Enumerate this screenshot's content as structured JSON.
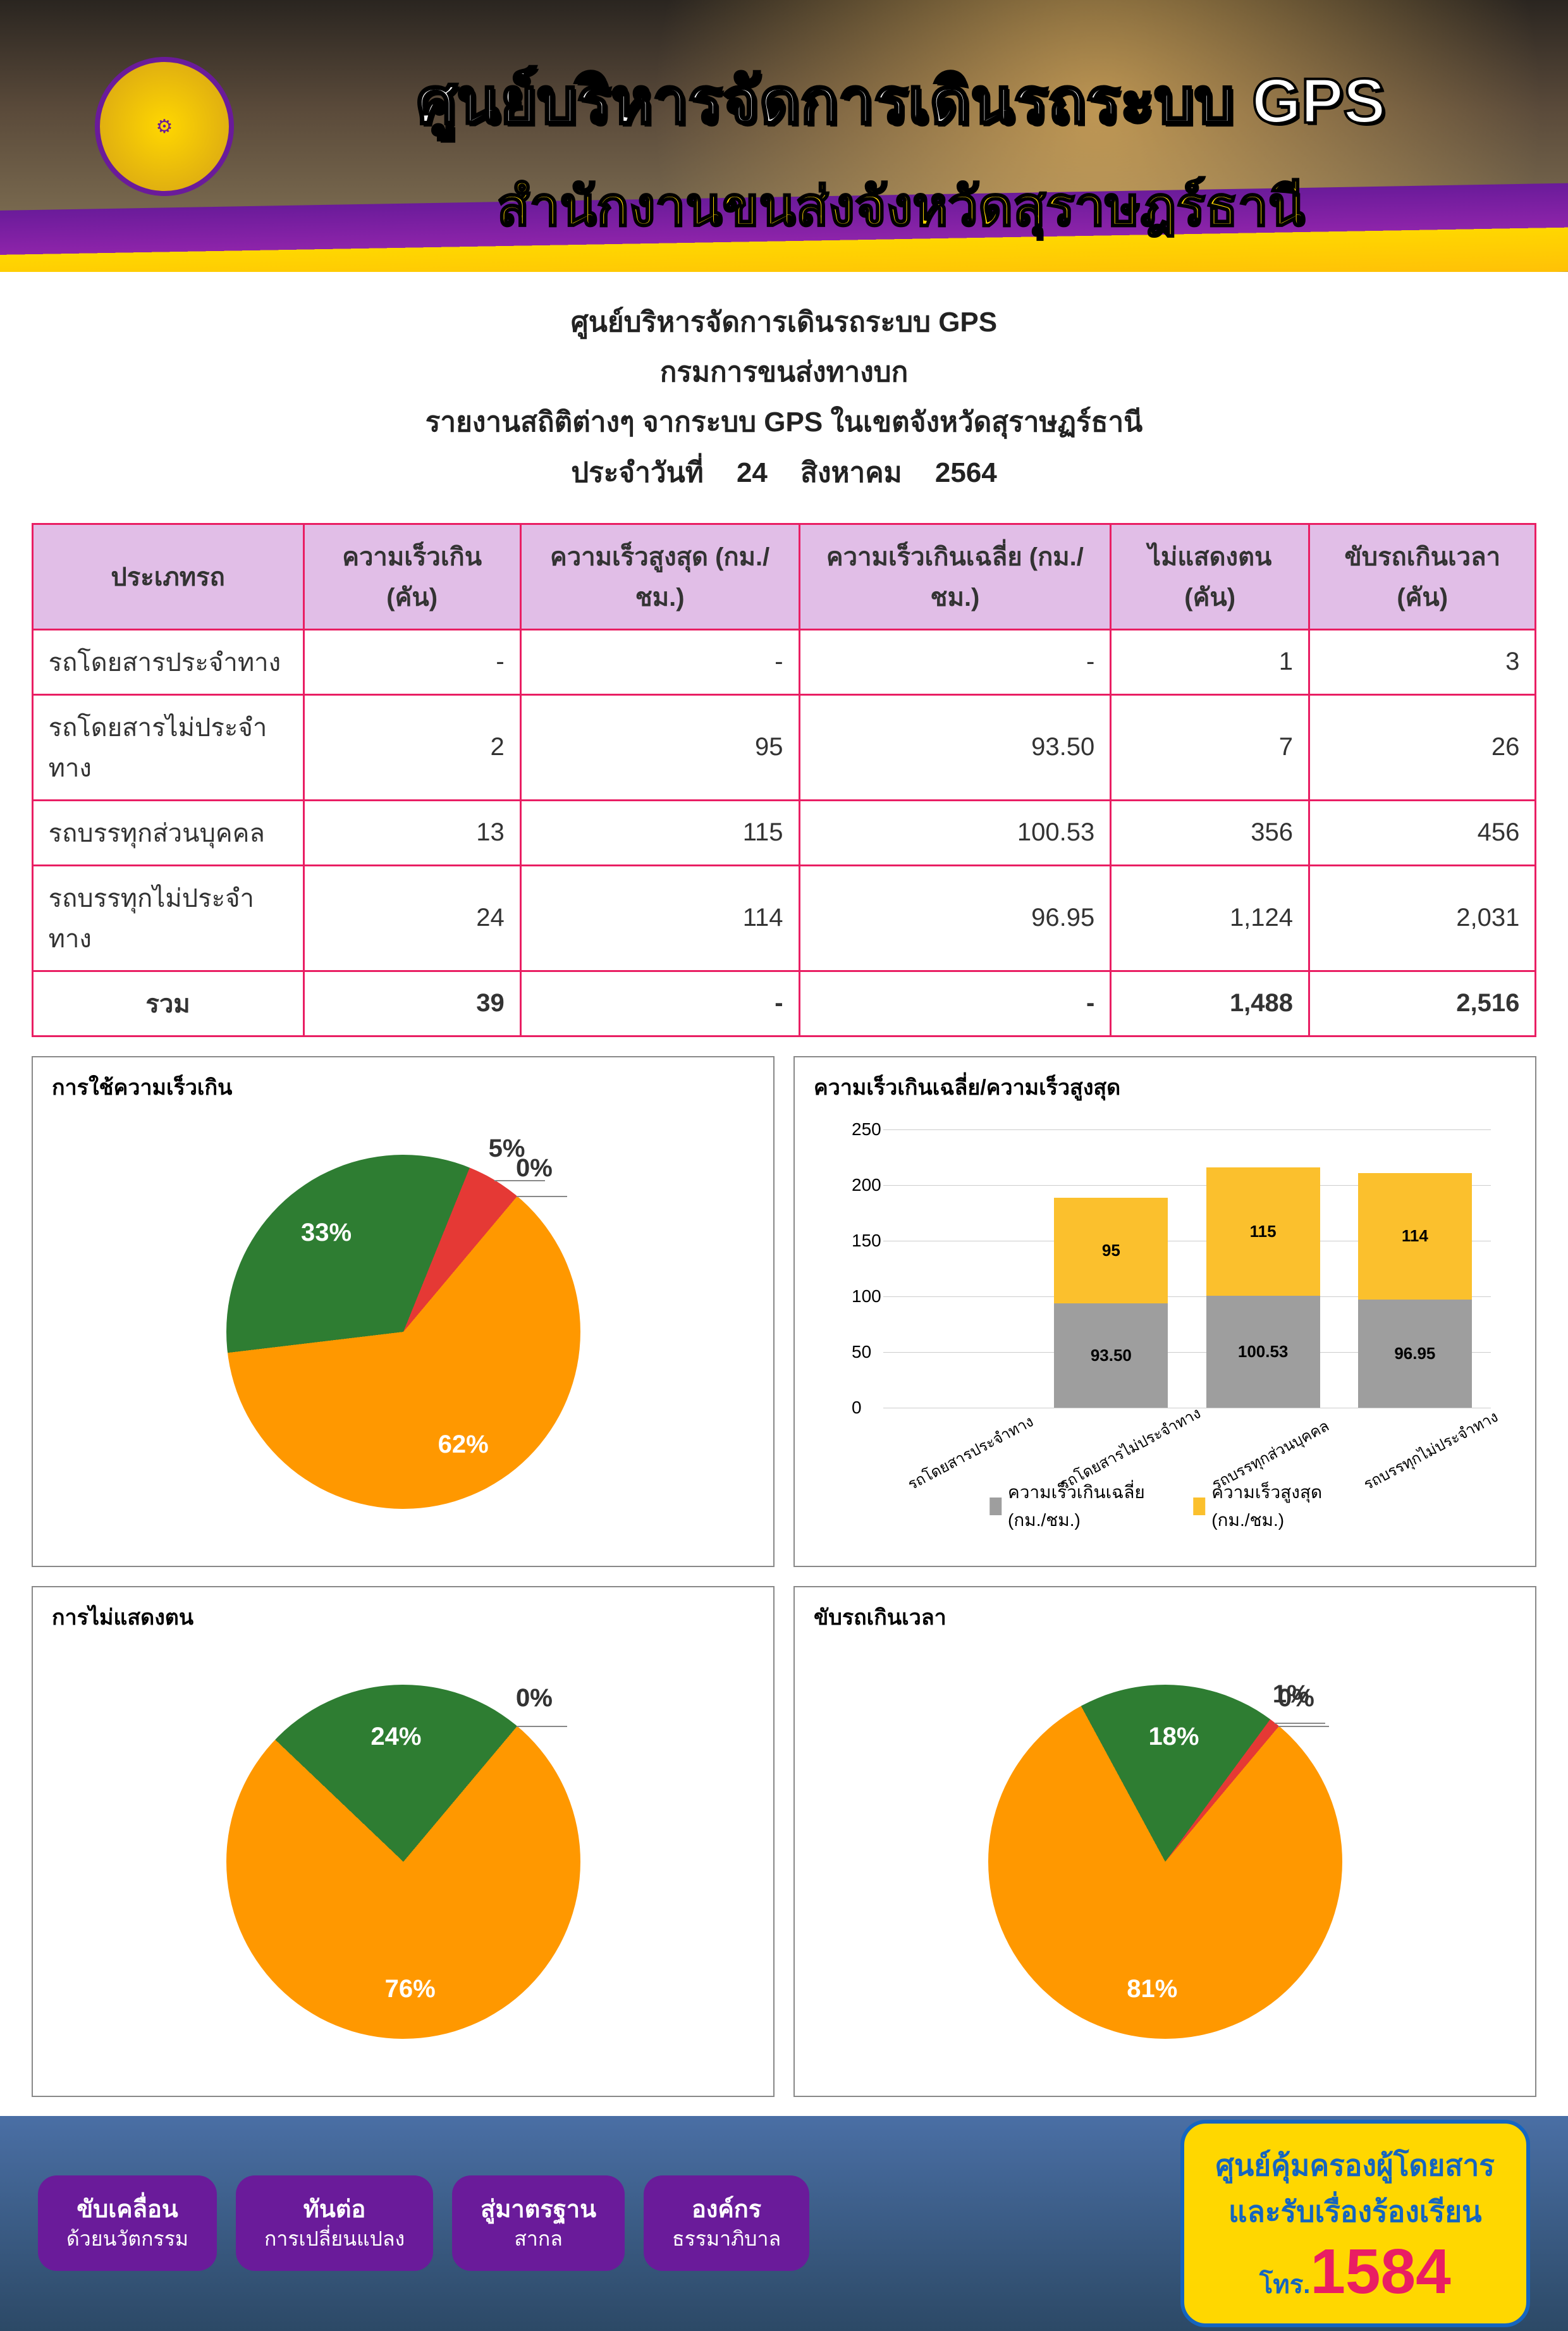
{
  "header": {
    "title_line1": "ศูนย์บริหารจัดการเดินรถระบบ GPS",
    "title_line2": "สำนักงานขนส่งจังหวัดสุราษฎร์ธานี"
  },
  "subheader": {
    "line1": "ศูนย์บริหารจัดการเดินรถระบบ GPS",
    "line2": "กรมการขนส่งทางบก",
    "line3": "รายงานสถิติต่างๆ จากระบบ GPS ในเขตจังหวัดสุราษฏร์ธานี",
    "date_prefix": "ประจำวันที่",
    "date_day": "24",
    "date_month": "สิงหาคม",
    "date_year": "2564"
  },
  "table": {
    "columns": [
      "ประเภทรถ",
      "ความเร็วเกิน (คัน)",
      "ความเร็วสูงสุด (กม./ชม.)",
      "ความเร็วเกินเฉลี่ย (กม./ชม.)",
      "ไม่แสดงตน (คัน)",
      "ขับรถเกินเวลา (คัน)"
    ],
    "rows": [
      [
        "รถโดยสารประจำทาง",
        "-",
        "-",
        "-",
        "1",
        "3"
      ],
      [
        "รถโดยสารไม่ประจำทาง",
        "2",
        "95",
        "93.50",
        "7",
        "26"
      ],
      [
        "รถบรรทุกส่วนบุคคล",
        "13",
        "115",
        "100.53",
        "356",
        "456"
      ],
      [
        "รถบรรทุกไม่ประจำทาง",
        "24",
        "114",
        "96.95",
        "1,124",
        "2,031"
      ]
    ],
    "total": [
      "รวม",
      "39",
      "-",
      "-",
      "1,488",
      "2,516"
    ],
    "header_bg": "#e1bee7",
    "border_color": "#e91e63"
  },
  "pie1": {
    "title": "การใช้ความเร็วเกิน",
    "slices": [
      {
        "label": "62%",
        "value": 62,
        "color": "#ff9800"
      },
      {
        "label": "33%",
        "value": 33,
        "color": "#2e7d32"
      },
      {
        "label": "5%",
        "value": 5,
        "color": "#e53935"
      },
      {
        "label": "0%",
        "value": 0,
        "color": "#5e35b1"
      }
    ]
  },
  "bar": {
    "title": "ความเร็วเกินเฉลี่ย/ความเร็วสูงสุด",
    "categories": [
      "รถโดยสารประจำทาง",
      "รถโดยสารไม่ประจำทาง",
      "รถบรรทุกส่วนบุคคล",
      "รถบรรทุกไม่ประจำทาง"
    ],
    "series": [
      {
        "name": "ความเร็วเกินเฉลี่ย (กม./ชม.)",
        "color": "#9e9e9e",
        "values": [
          0,
          93.5,
          100.53,
          96.95
        ],
        "labels": [
          "",
          "93.50",
          "100.53",
          "96.95"
        ]
      },
      {
        "name": "ความเร็วสูงสุด (กม./ชม.)",
        "color": "#fbc02d",
        "values": [
          0,
          95,
          115,
          114
        ],
        "labels": [
          "",
          "95",
          "115",
          "114"
        ]
      }
    ],
    "ymax": 250,
    "ytick": 50
  },
  "pie2": {
    "title": "การไม่แสดงตน",
    "slices": [
      {
        "label": "76%",
        "value": 76,
        "color": "#ff9800"
      },
      {
        "label": "24%",
        "value": 24,
        "color": "#2e7d32"
      },
      {
        "label": "0%",
        "value": 0,
        "color": "#e53935"
      },
      {
        "label": "0%",
        "value": 0,
        "color": "#5e35b1"
      }
    ]
  },
  "pie3": {
    "title": "ขับรถเกินเวลา",
    "slices": [
      {
        "label": "81%",
        "value": 81,
        "color": "#ff9800"
      },
      {
        "label": "18%",
        "value": 18,
        "color": "#2e7d32"
      },
      {
        "label": "1%",
        "value": 1,
        "color": "#e53935"
      },
      {
        "label": "0%",
        "value": 0,
        "color": "#5e35b1"
      }
    ]
  },
  "footer": {
    "tags": [
      {
        "main": "ขับเคลื่อน",
        "sub": "ด้วยนวัตกรรม"
      },
      {
        "main": "ทันต่อ",
        "sub": "การเปลี่ยนแปลง"
      },
      {
        "main": "สู่มาตรฐาน",
        "sub": "สากล"
      },
      {
        "main": "องค์กร",
        "sub": "ธรรมาภิบาล"
      }
    ],
    "hotline": {
      "line1": "ศูนย์คุ้มครองผู้โดยสาร",
      "line2": "และรับเรื่องร้องเรียน",
      "tel_prefix": "โทร.",
      "number": "1584"
    }
  }
}
